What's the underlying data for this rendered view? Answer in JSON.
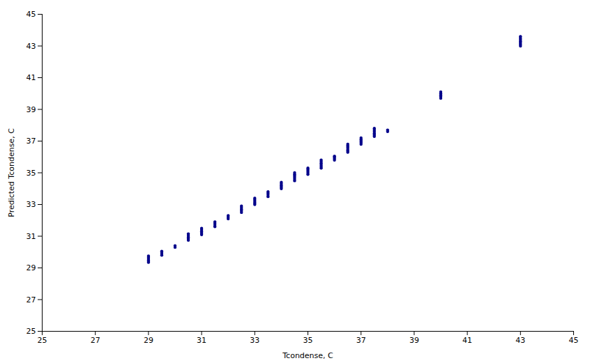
{
  "chart_data": {
    "type": "scatter",
    "xlabel": "Tcondense, C",
    "ylabel": "Predicted Tcondense, C",
    "xlim": [
      25,
      45
    ],
    "ylim": [
      25,
      45
    ],
    "xticks": [
      25,
      27,
      29,
      31,
      33,
      35,
      37,
      39,
      41,
      43,
      45
    ],
    "yticks": [
      25,
      27,
      29,
      31,
      33,
      35,
      37,
      39,
      41,
      43,
      45
    ],
    "grid": false,
    "color": "#00008B",
    "marker": "circle",
    "x": [
      29.0,
      29.0,
      29.0,
      29.0,
      29.0,
      29.5,
      29.5,
      29.5,
      29.5,
      30.0,
      30.0,
      30.5,
      30.5,
      30.5,
      30.5,
      30.5,
      31.0,
      31.0,
      31.0,
      31.0,
      31.0,
      31.5,
      31.5,
      31.5,
      31.5,
      32.0,
      32.0,
      32.0,
      32.5,
      32.5,
      32.5,
      32.5,
      32.5,
      33.0,
      33.0,
      33.0,
      33.0,
      33.0,
      33.5,
      33.5,
      33.5,
      33.5,
      34.0,
      34.0,
      34.0,
      34.0,
      34.0,
      34.5,
      34.5,
      34.5,
      34.5,
      34.5,
      34.5,
      35.0,
      35.0,
      35.0,
      35.0,
      35.0,
      35.5,
      35.5,
      35.5,
      35.5,
      35.5,
      35.5,
      36.0,
      36.0,
      36.0,
      36.0,
      36.5,
      36.5,
      36.5,
      36.5,
      36.5,
      36.5,
      37.0,
      37.0,
      37.0,
      37.0,
      37.0,
      37.5,
      37.5,
      37.5,
      37.5,
      37.5,
      37.5,
      38.0,
      38.0,
      40.0,
      40.0,
      40.0,
      40.0,
      40.0,
      40.0,
      43.0,
      43.0,
      43.0,
      43.0,
      43.0,
      43.0,
      43.0
    ],
    "values": [
      29.35,
      29.45,
      29.55,
      29.65,
      29.75,
      29.8,
      29.9,
      30.0,
      30.05,
      30.3,
      30.4,
      30.75,
      30.85,
      30.95,
      31.05,
      31.15,
      31.1,
      31.2,
      31.3,
      31.4,
      31.5,
      31.6,
      31.7,
      31.8,
      31.9,
      32.1,
      32.2,
      32.3,
      32.5,
      32.6,
      32.7,
      32.8,
      32.9,
      33.0,
      33.1,
      33.2,
      33.3,
      33.4,
      33.5,
      33.6,
      33.7,
      33.8,
      34.0,
      34.1,
      34.2,
      34.3,
      34.4,
      34.5,
      34.6,
      34.7,
      34.8,
      34.9,
      35.0,
      34.9,
      35.0,
      35.1,
      35.2,
      35.3,
      35.3,
      35.4,
      35.5,
      35.6,
      35.7,
      35.8,
      35.8,
      35.9,
      36.0,
      36.05,
      36.3,
      36.4,
      36.5,
      36.6,
      36.7,
      36.8,
      36.8,
      36.9,
      37.0,
      37.1,
      37.2,
      37.3,
      37.4,
      37.5,
      37.6,
      37.7,
      37.8,
      37.6,
      37.7,
      39.7,
      39.8,
      39.85,
      39.9,
      40.0,
      40.1,
      43.0,
      43.1,
      43.2,
      43.3,
      43.4,
      43.5,
      43.6
    ]
  }
}
